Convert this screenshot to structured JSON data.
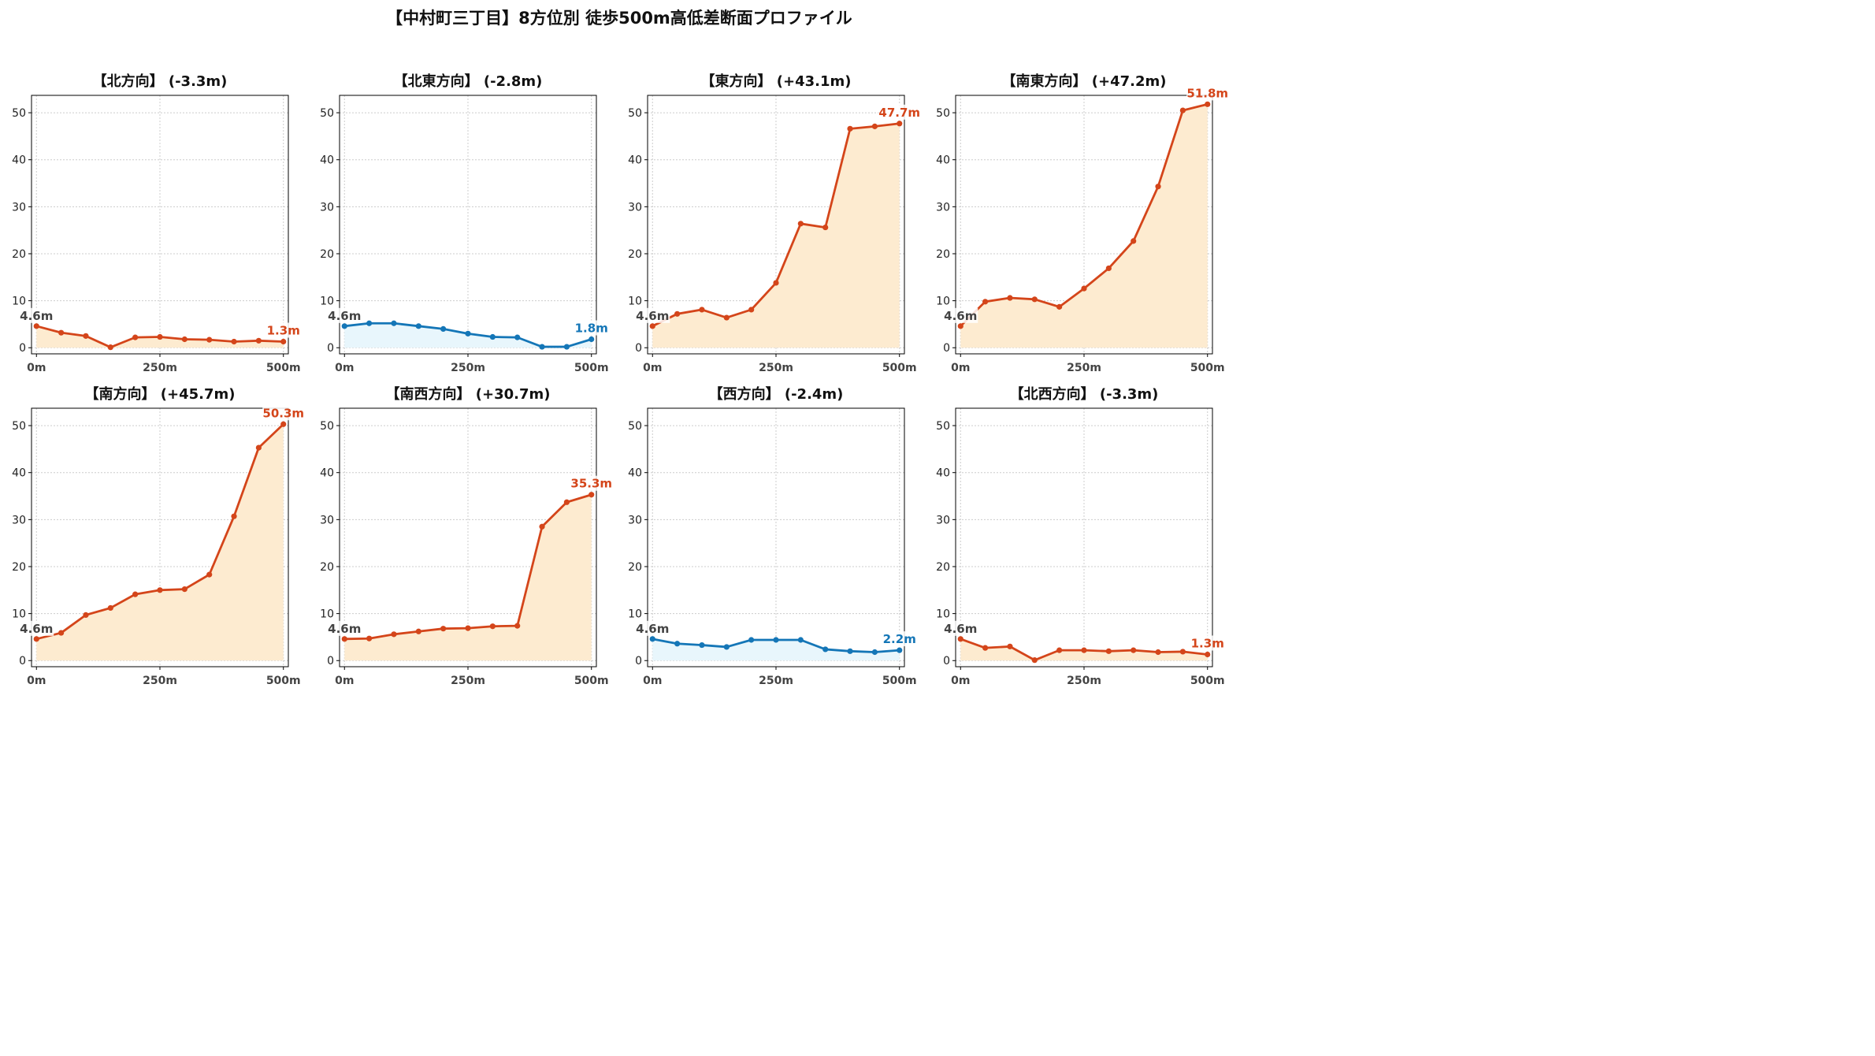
{
  "page": {
    "title": "【中村町三丁目】8方位別 徒歩500m高低差断面プロファイル"
  },
  "colors": {
    "up_line": "#d4451a",
    "up_fill": "#fdebd0",
    "down_line": "#1476b7",
    "down_fill": "#e8f6fc",
    "start_label": "#444444",
    "grid": "#cccccc"
  },
  "chart_data": [
    {
      "type": "area",
      "title": "【北方向】 (-3.3m)",
      "trend": "up",
      "x": [
        0,
        50,
        100,
        150,
        200,
        250,
        300,
        350,
        400,
        450,
        500
      ],
      "y": [
        4.6,
        3.2,
        2.5,
        0.1,
        2.2,
        2.3,
        1.8,
        1.7,
        1.3,
        1.5,
        1.3
      ],
      "xticks": [
        0,
        250,
        500
      ],
      "xticklabels": [
        "0m",
        "250m",
        "500m"
      ],
      "yticks": [
        0,
        10,
        20,
        30,
        40,
        50
      ],
      "xlim": [
        -10,
        510
      ],
      "ylim": [
        -1.3,
        53.7
      ],
      "start_label": "4.6m",
      "end_label": "1.3m"
    },
    {
      "type": "area",
      "title": "【北東方向】 (-2.8m)",
      "trend": "down",
      "x": [
        0,
        50,
        100,
        150,
        200,
        250,
        300,
        350,
        400,
        450,
        500
      ],
      "y": [
        4.6,
        5.2,
        5.2,
        4.6,
        4.0,
        3.0,
        2.3,
        2.2,
        0.2,
        0.2,
        1.8
      ],
      "xticks": [
        0,
        250,
        500
      ],
      "xticklabels": [
        "0m",
        "250m",
        "500m"
      ],
      "yticks": [
        0,
        10,
        20,
        30,
        40,
        50
      ],
      "xlim": [
        -10,
        510
      ],
      "ylim": [
        -1.3,
        53.7
      ],
      "start_label": "4.6m",
      "end_label": "1.8m"
    },
    {
      "type": "area",
      "title": "【東方向】 (+43.1m)",
      "trend": "up",
      "x": [
        0,
        50,
        100,
        150,
        200,
        250,
        300,
        350,
        400,
        450,
        500
      ],
      "y": [
        4.6,
        7.2,
        8.1,
        6.4,
        8.1,
        13.8,
        26.4,
        25.6,
        46.6,
        47.1,
        47.7
      ],
      "xticks": [
        0,
        250,
        500
      ],
      "xticklabels": [
        "0m",
        "250m",
        "500m"
      ],
      "yticks": [
        0,
        10,
        20,
        30,
        40,
        50
      ],
      "xlim": [
        -10,
        510
      ],
      "ylim": [
        -1.3,
        53.7
      ],
      "start_label": "4.6m",
      "end_label": "47.7m"
    },
    {
      "type": "area",
      "title": "【南東方向】 (+47.2m)",
      "trend": "up",
      "x": [
        0,
        50,
        100,
        150,
        200,
        250,
        300,
        350,
        400,
        450,
        500
      ],
      "y": [
        4.6,
        9.8,
        10.6,
        10.3,
        8.7,
        12.6,
        16.9,
        22.7,
        34.3,
        50.5,
        51.8
      ],
      "xticks": [
        0,
        250,
        500
      ],
      "xticklabels": [
        "0m",
        "250m",
        "500m"
      ],
      "yticks": [
        0,
        10,
        20,
        30,
        40,
        50
      ],
      "xlim": [
        -10,
        510
      ],
      "ylim": [
        -1.3,
        53.7
      ],
      "start_label": "4.6m",
      "end_label": "51.8m"
    },
    {
      "type": "area",
      "title": "【南方向】 (+45.7m)",
      "trend": "up",
      "x": [
        0,
        50,
        100,
        150,
        200,
        250,
        300,
        350,
        400,
        450,
        500
      ],
      "y": [
        4.6,
        5.9,
        9.7,
        11.2,
        14.1,
        15.0,
        15.2,
        18.3,
        30.7,
        45.3,
        50.3
      ],
      "xticks": [
        0,
        250,
        500
      ],
      "xticklabels": [
        "0m",
        "250m",
        "500m"
      ],
      "yticks": [
        0,
        10,
        20,
        30,
        40,
        50
      ],
      "xlim": [
        -10,
        510
      ],
      "ylim": [
        -1.3,
        53.7
      ],
      "start_label": "4.6m",
      "end_label": "50.3m"
    },
    {
      "type": "area",
      "title": "【南西方向】 (+30.7m)",
      "trend": "up",
      "x": [
        0,
        50,
        100,
        150,
        200,
        250,
        300,
        350,
        400,
        450,
        500
      ],
      "y": [
        4.6,
        4.7,
        5.6,
        6.2,
        6.8,
        6.9,
        7.3,
        7.4,
        28.5,
        33.7,
        35.3
      ],
      "xticks": [
        0,
        250,
        500
      ],
      "xticklabels": [
        "0m",
        "250m",
        "500m"
      ],
      "yticks": [
        0,
        10,
        20,
        30,
        40,
        50
      ],
      "xlim": [
        -10,
        510
      ],
      "ylim": [
        -1.3,
        53.7
      ],
      "start_label": "4.6m",
      "end_label": "35.3m"
    },
    {
      "type": "area",
      "title": "【西方向】 (-2.4m)",
      "trend": "down",
      "x": [
        0,
        50,
        100,
        150,
        200,
        250,
        300,
        350,
        400,
        450,
        500
      ],
      "y": [
        4.6,
        3.6,
        3.3,
        2.9,
        4.4,
        4.4,
        4.4,
        2.4,
        2.0,
        1.8,
        2.2
      ],
      "xticks": [
        0,
        250,
        500
      ],
      "xticklabels": [
        "0m",
        "250m",
        "500m"
      ],
      "yticks": [
        0,
        10,
        20,
        30,
        40,
        50
      ],
      "xlim": [
        -10,
        510
      ],
      "ylim": [
        -1.3,
        53.7
      ],
      "start_label": "4.6m",
      "end_label": "2.2m"
    },
    {
      "type": "area",
      "title": "【北西方向】 (-3.3m)",
      "trend": "up",
      "x": [
        0,
        50,
        100,
        150,
        200,
        250,
        300,
        350,
        400,
        450,
        500
      ],
      "y": [
        4.6,
        2.7,
        3.0,
        0.1,
        2.2,
        2.2,
        2.0,
        2.2,
        1.8,
        1.9,
        1.3
      ],
      "xticks": [
        0,
        250,
        500
      ],
      "xticklabels": [
        "0m",
        "250m",
        "500m"
      ],
      "yticks": [
        0,
        10,
        20,
        30,
        40,
        50
      ],
      "xlim": [
        -10,
        510
      ],
      "ylim": [
        -1.3,
        53.7
      ],
      "start_label": "4.6m",
      "end_label": "1.3m"
    }
  ]
}
